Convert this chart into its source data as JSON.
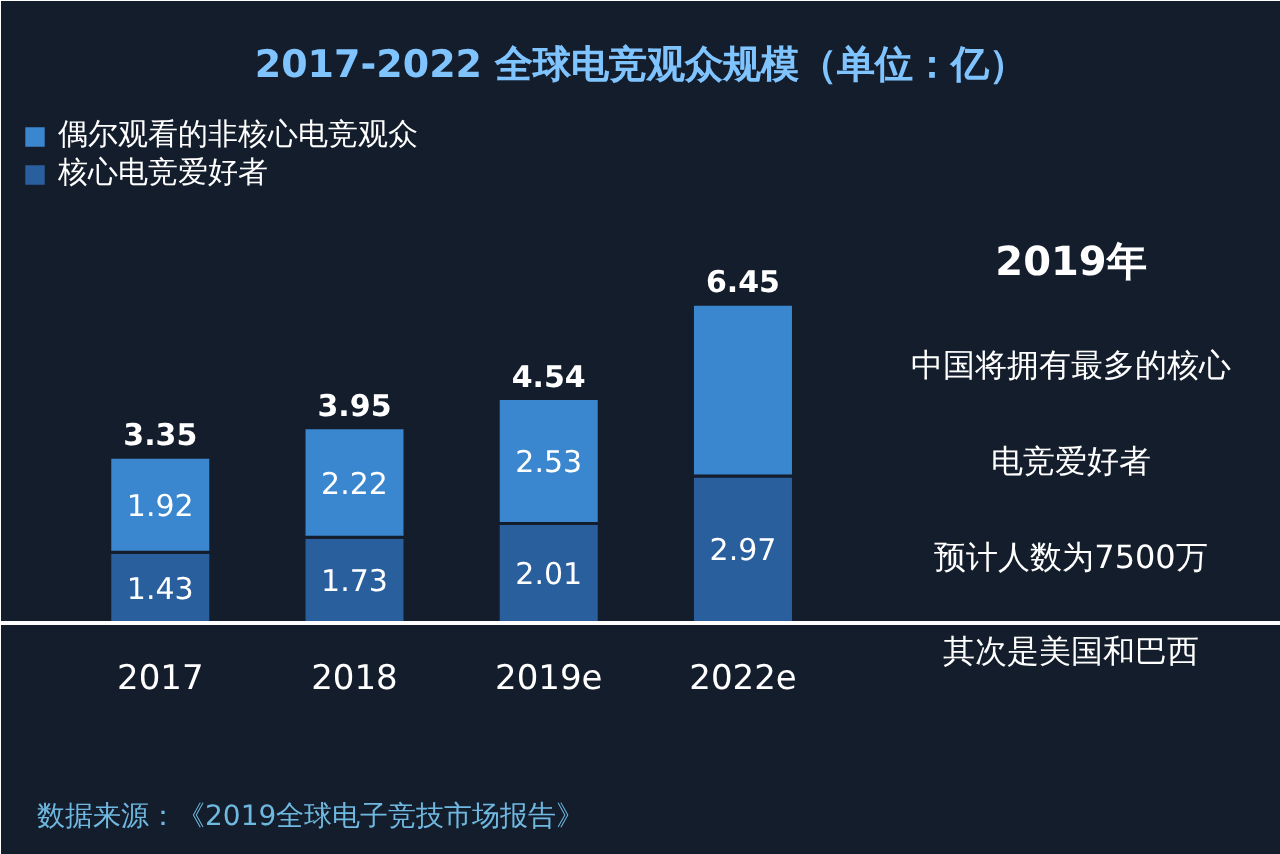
{
  "chart_data": {
    "type": "bar",
    "title": "2017-2022 全球电竞观众规模（单位：亿）",
    "categories": [
      "2017",
      "2018",
      "2019e",
      "2022e"
    ],
    "stacked": true,
    "series": [
      {
        "name": "核心电竞爱好者",
        "color": "#2a5f9e",
        "values": [
          1.43,
          1.73,
          2.01,
          2.97
        ],
        "value_labels": [
          "1.43",
          "1.73",
          "2.01",
          "2.97"
        ]
      },
      {
        "name": "偶尔观看的非核心电竞观众",
        "color": "#3a86cf",
        "values": [
          1.92,
          2.22,
          2.53,
          3.48
        ],
        "value_labels": [
          "1.92",
          "2.22",
          "2.53",
          null
        ]
      }
    ],
    "totals": [
      "3.35",
      "3.95",
      "4.54",
      "6.45"
    ],
    "legend": "top left",
    "grid": false,
    "annotations": [
      "2019年",
      "中国将拥有最多的核心",
      "电竞爱好者",
      "预计人数为7500万",
      "其次是美国和巴西",
      "数据来源：《2019全球电子竞技市场报告》"
    ]
  }
}
